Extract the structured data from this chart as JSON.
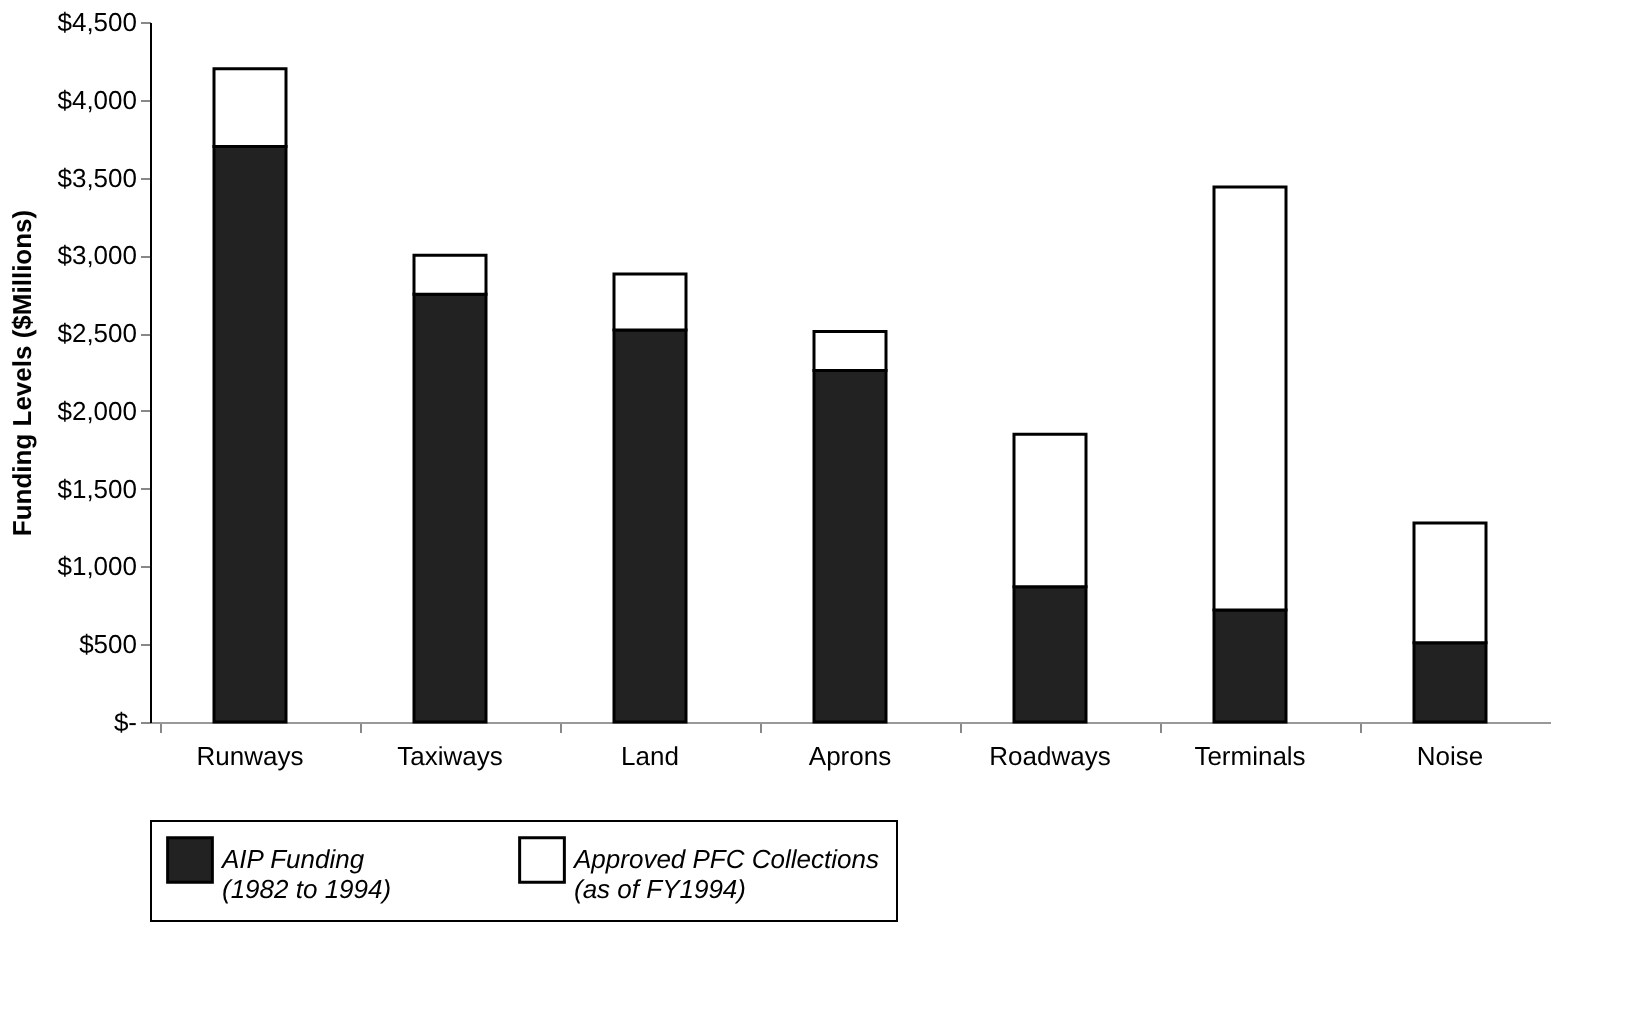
{
  "chart_data": {
    "type": "bar",
    "stacked": true,
    "ylabel": "Funding Levels ($Millions)",
    "categories": [
      "Runways",
      "Taxiways",
      "Land",
      "Aprons",
      "Roadways",
      "Terminals",
      "Noise"
    ],
    "series": [
      {
        "name": "AIP Funding (1982 to 1994)",
        "color": "#222222",
        "values": [
          3700,
          2750,
          2520,
          2260,
          870,
          720,
          510
        ]
      },
      {
        "name": "Approved PFC Collections (as of FY1994)",
        "color": "#ffffff",
        "values": [
          500,
          250,
          360,
          250,
          980,
          2720,
          770
        ]
      }
    ],
    "ylim": [
      0,
      4500
    ],
    "yticks": [
      {
        "value": 0,
        "label": "$-"
      },
      {
        "value": 500,
        "label": "$500"
      },
      {
        "value": 1000,
        "label": "$1,000"
      },
      {
        "value": 1500,
        "label": "$1,500"
      },
      {
        "value": 2000,
        "label": "$2,000"
      },
      {
        "value": 2500,
        "label": "$2,500"
      },
      {
        "value": 3000,
        "label": "$3,000"
      },
      {
        "value": 3500,
        "label": "$3,500"
      },
      {
        "value": 4000,
        "label": "$4,000"
      },
      {
        "value": 4500,
        "label": "$4,500"
      }
    ],
    "grid": false,
    "legend": "bottom"
  }
}
